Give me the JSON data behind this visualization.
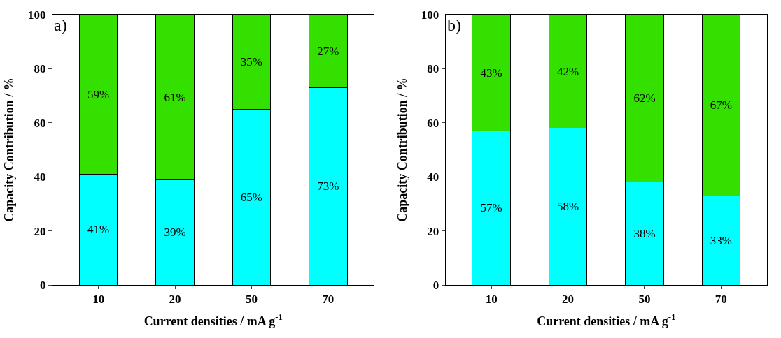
{
  "chart_data": [
    {
      "type": "bar",
      "stacked": true,
      "categories": [
        "10",
        "20",
        "50",
        "70"
      ],
      "xlabel": "Current densities / mA g$^{-1}$",
      "ylabel": "Capacity Contribution / %",
      "ylim": [
        0,
        100
      ],
      "yticks": [
        0,
        20,
        40,
        60,
        80,
        100
      ],
      "annotations": [
        "a)"
      ],
      "series": [
        {
          "color": "#00ffff",
          "values": [
            41,
            39,
            65,
            73
          ],
          "value_labels": [
            "41%",
            "39%",
            "65%",
            "73%"
          ]
        },
        {
          "color": "#33e000",
          "values": [
            59,
            61,
            35,
            27
          ],
          "value_labels": [
            "59%",
            "61%",
            "35%",
            "27%"
          ]
        }
      ]
    },
    {
      "type": "bar",
      "stacked": true,
      "categories": [
        "10",
        "20",
        "50",
        "70"
      ],
      "xlabel": "Current densities / mA g$^{-1}$",
      "ylabel": "Capacity Contribution / %",
      "ylim": [
        0,
        100
      ],
      "yticks": [
        0,
        20,
        40,
        60,
        80,
        100
      ],
      "annotations": [
        "b)"
      ],
      "series": [
        {
          "color": "#00ffff",
          "values": [
            57,
            58,
            38,
            33
          ],
          "value_labels": [
            "57%",
            "58%",
            "38%",
            "33%"
          ]
        },
        {
          "color": "#33e000",
          "values": [
            43,
            42,
            62,
            67
          ],
          "value_labels": [
            "43%",
            "42%",
            "62%",
            "67%"
          ]
        }
      ]
    }
  ]
}
